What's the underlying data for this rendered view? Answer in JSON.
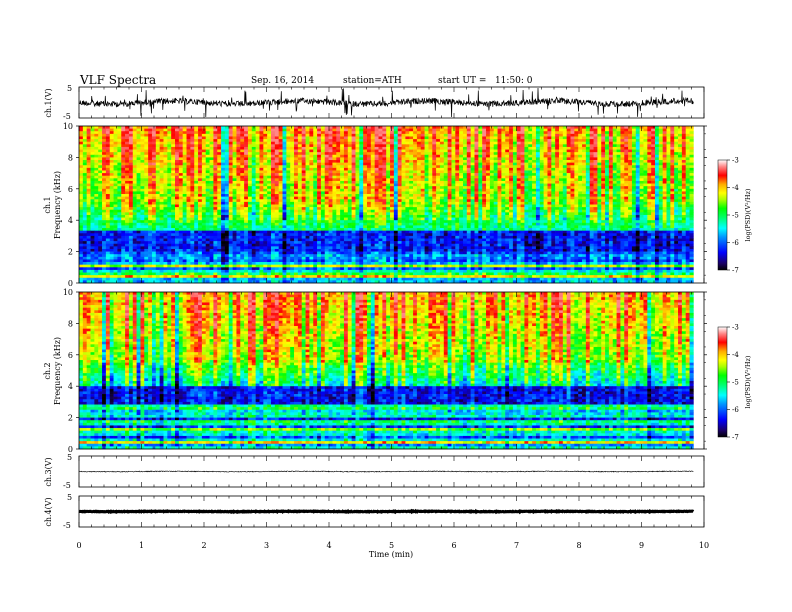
{
  "header": {
    "title": "VLF Spectra",
    "date": "Sep. 16, 2014",
    "station": "station=ATH",
    "start": "start UT =   11:50: 0"
  },
  "chart_data": [
    {
      "type": "line",
      "name": "ch1-waveform",
      "ylabel": "ch.1(V)",
      "yticks": [
        "5",
        "-5"
      ],
      "ylim": [
        -5,
        5
      ],
      "xlim": [
        0,
        10
      ],
      "data_until": 9.83
    },
    {
      "type": "heatmap",
      "name": "ch1-spectrogram",
      "ylabel": "ch.1 Frequency (kHz)",
      "yticks": [
        "0",
        "2",
        "4",
        "6",
        "8",
        "10"
      ],
      "ylim": [
        0,
        10
      ],
      "xlim": [
        0,
        10
      ],
      "colorbar": {
        "label": "log(PSD)(V²/Hz)",
        "ticks": [
          "-3",
          "-4",
          "-5",
          "-6",
          "-7"
        ],
        "range": [
          -7,
          -3
        ]
      }
    },
    {
      "type": "heatmap",
      "name": "ch2-spectrogram",
      "ylabel": "ch.2 Frequency (kHz)",
      "yticks": [
        "0",
        "2",
        "4",
        "6",
        "8",
        "10"
      ],
      "ylim": [
        0,
        10
      ],
      "xlim": [
        0,
        10
      ],
      "colorbar": {
        "label": "log(PSD)(V²/Hz)",
        "ticks": [
          "-3",
          "-4",
          "-5",
          "-6",
          "-7"
        ],
        "range": [
          -7,
          -3
        ]
      }
    },
    {
      "type": "line",
      "name": "ch3-waveform",
      "ylabel": "ch.3(V)",
      "yticks": [
        "5",
        "-5"
      ],
      "ylim": [
        -5,
        5
      ],
      "xlim": [
        0,
        10
      ]
    },
    {
      "type": "line",
      "name": "ch4-waveform",
      "ylabel": "ch.4(V)",
      "yticks": [
        "5",
        "-5"
      ],
      "ylim": [
        -5,
        5
      ],
      "xlim": [
        0,
        10
      ]
    }
  ],
  "xaxis": {
    "label": "Time (min)",
    "ticks": [
      "0",
      "1",
      "2",
      "3",
      "4",
      "5",
      "6",
      "7",
      "8",
      "9",
      "10"
    ]
  },
  "colors": {
    "scale": [
      "#000000",
      "#1a0066",
      "#0000ff",
      "#0096ff",
      "#00ffff",
      "#00ff88",
      "#00ff00",
      "#aaff00",
      "#ffff00",
      "#ffaa00",
      "#ff0000",
      "#ff7777",
      "#ffffff"
    ]
  }
}
